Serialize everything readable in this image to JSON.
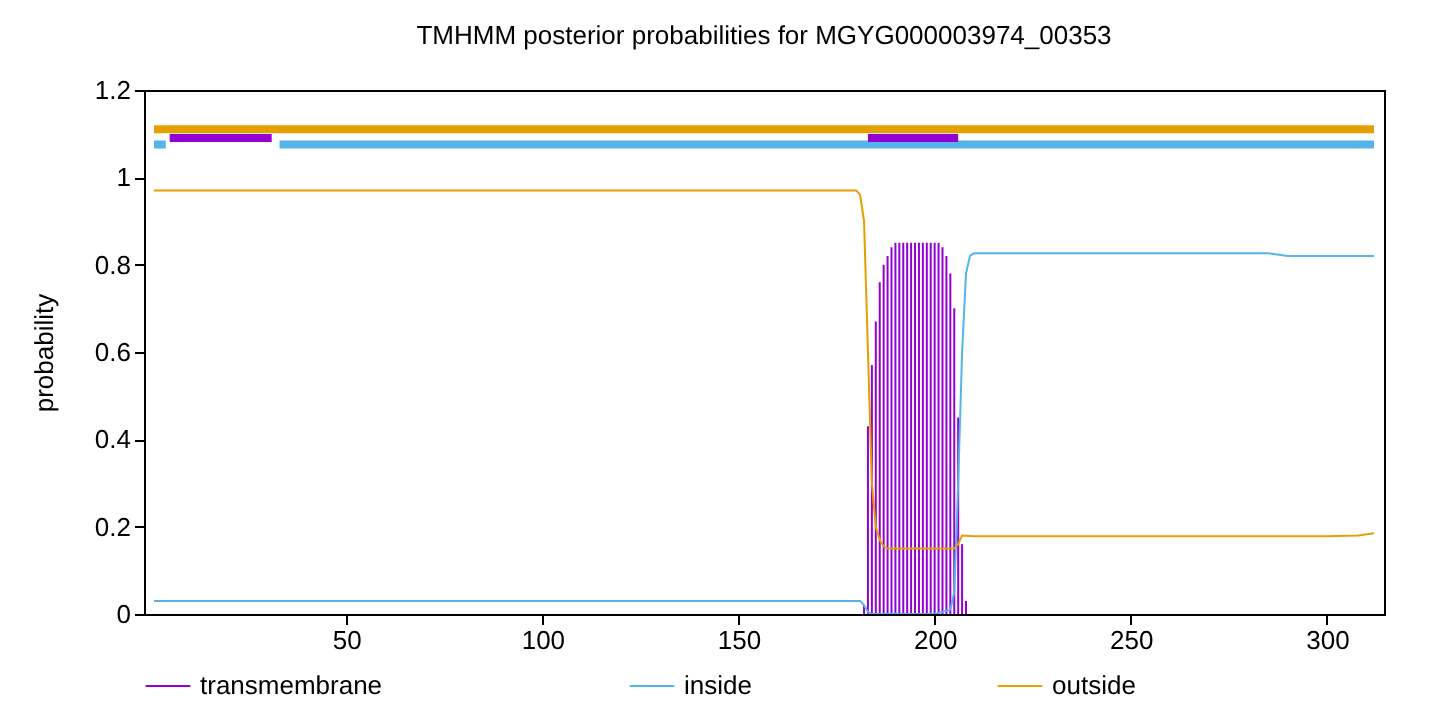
{
  "chart_data": {
    "type": "line",
    "title": "TMHMM posterior probabilities for MGYG000003974_00353",
    "ylabel": "probability",
    "xlim": [
      1,
      312
    ],
    "ylim": [
      0,
      1.2
    ],
    "xticks": [
      50,
      100,
      150,
      200,
      250,
      300
    ],
    "yticks": [
      0,
      0.2,
      0.4,
      0.6,
      0.8,
      1,
      1.2
    ],
    "grid": false,
    "legend": "bottom",
    "series": [
      {
        "name": "transmembrane",
        "type": "bar",
        "color": "#9400d3",
        "x": [
          182,
          183,
          184,
          185,
          186,
          187,
          188,
          189,
          190,
          191,
          192,
          193,
          194,
          195,
          196,
          197,
          198,
          199,
          200,
          201,
          202,
          203,
          204,
          205,
          206,
          207,
          208
        ],
        "values": [
          0.02,
          0.43,
          0.57,
          0.67,
          0.76,
          0.8,
          0.82,
          0.84,
          0.85,
          0.85,
          0.85,
          0.85,
          0.85,
          0.85,
          0.85,
          0.85,
          0.85,
          0.85,
          0.85,
          0.85,
          0.84,
          0.82,
          0.78,
          0.7,
          0.45,
          0.16,
          0.03
        ]
      },
      {
        "name": "inside",
        "color": "#56b4e9",
        "x": [
          1,
          181,
          182,
          183,
          184,
          200,
          204,
          205,
          206,
          207,
          208,
          209,
          210,
          285,
          290,
          312
        ],
        "values": [
          0.03,
          0.03,
          0.02,
          0.005,
          0,
          0,
          0.01,
          0.05,
          0.3,
          0.6,
          0.78,
          0.82,
          0.826,
          0.826,
          0.82,
          0.82
        ]
      },
      {
        "name": "outside",
        "color": "#e69f00",
        "x": [
          1,
          180,
          181,
          182,
          183,
          184,
          185,
          186,
          187,
          188,
          203,
          205,
          206,
          207,
          210,
          300,
          308,
          312
        ],
        "values": [
          0.97,
          0.97,
          0.96,
          0.9,
          0.6,
          0.3,
          0.2,
          0.17,
          0.155,
          0.15,
          0.15,
          0.15,
          0.16,
          0.18,
          0.178,
          0.178,
          0.18,
          0.185
        ]
      },
      {
        "color": "#e69f00",
        "x": [
          1,
          312
        ],
        "values": [
          1.11,
          1.11
        ]
      },
      {
        "color": "#56b4e9",
        "x": [
          1,
          4,
          18,
          33,
          312
        ],
        "values": [
          1.075,
          1.075,
          null,
          1.075,
          1.075
        ]
      },
      {
        "color": "#9400d3",
        "x": [
          5,
          31,
          100,
          183,
          206
        ],
        "values": [
          1.09,
          1.09,
          null,
          1.09,
          1.09
        ]
      }
    ]
  }
}
